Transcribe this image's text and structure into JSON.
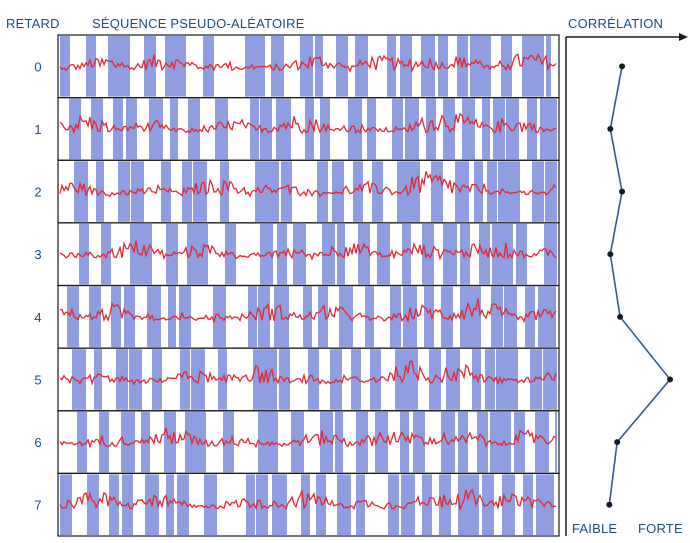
{
  "header": {
    "delay_label": "RETARD",
    "sequence_label": "SÉQUENCE PSEUDO-ALÉATOIRE",
    "correlation_label": "CORRÉLATION"
  },
  "footer": {
    "weak_label": "FAIBLE",
    "strong_label": "FORTE"
  },
  "rows": [
    {
      "delay": "0",
      "correlation": 0.47
    },
    {
      "delay": "1",
      "correlation": 0.35
    },
    {
      "delay": "2",
      "correlation": 0.47
    },
    {
      "delay": "3",
      "correlation": 0.35
    },
    {
      "delay": "4",
      "correlation": 0.45
    },
    {
      "delay": "5",
      "correlation": 0.96
    },
    {
      "delay": "6",
      "correlation": 0.42
    },
    {
      "delay": "7",
      "correlation": 0.34
    }
  ],
  "colors": {
    "band": "#8e9ee0",
    "trace": "#e8262d",
    "line": "#2f5c8a",
    "text": "#1b4d7a"
  }
}
